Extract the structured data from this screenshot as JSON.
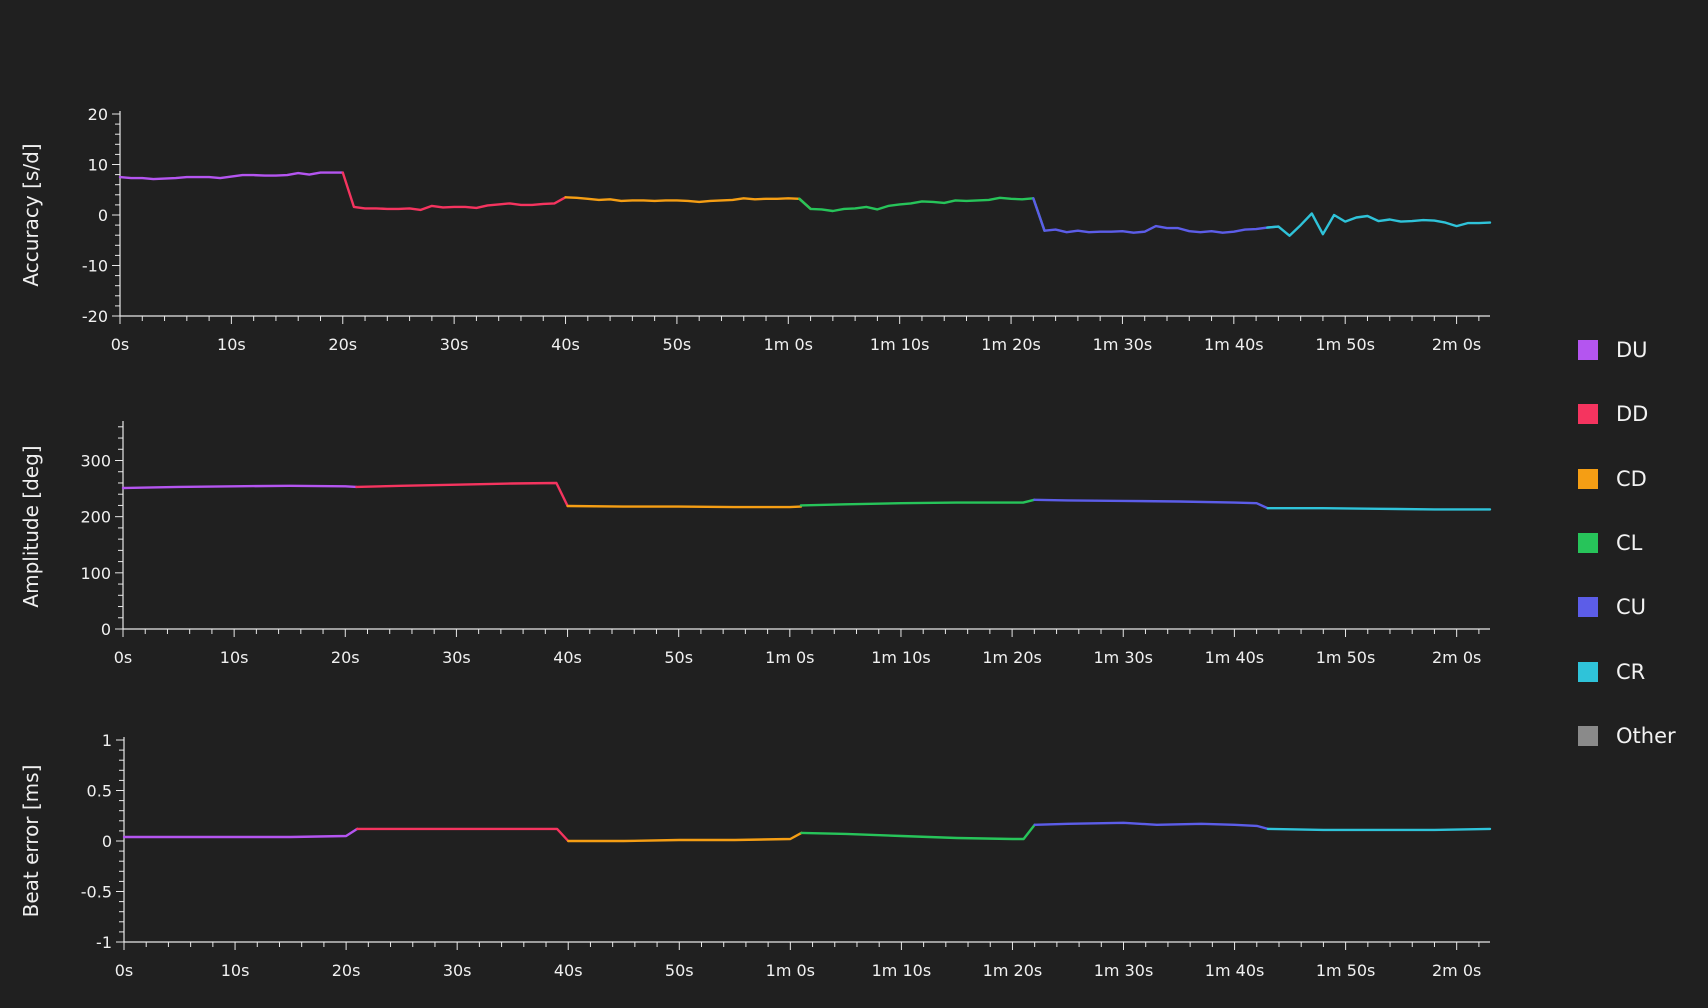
{
  "legend": [
    {
      "label": "DU",
      "color": "#b455f0"
    },
    {
      "label": "DD",
      "color": "#f5345f"
    },
    {
      "label": "CD",
      "color": "#f59e14"
    },
    {
      "label": "CL",
      "color": "#27c45a"
    },
    {
      "label": "CU",
      "color": "#5c5de8"
    },
    {
      "label": "CR",
      "color": "#2fc3d9"
    },
    {
      "label": "Other",
      "color": "#8a8a8a"
    }
  ],
  "chart_data": [
    {
      "type": "line",
      "ylabel": "Accuracy [s/d]",
      "xlabel": "",
      "ylim": [
        -20,
        20
      ],
      "xlim": [
        0,
        123
      ],
      "x_ticks": [
        "0s",
        "10s",
        "20s",
        "30s",
        "40s",
        "50s",
        "1m 0s",
        "1m 10s",
        "1m 20s",
        "1m 30s",
        "1m 40s",
        "1m 50s",
        "2m 0s"
      ],
      "y_ticks": [
        "20",
        "10",
        "0",
        "-10",
        "-20"
      ],
      "series": [
        {
          "name": "DU",
          "color": "#b455f0",
          "points": [
            [
              0,
              7.5
            ],
            [
              1,
              7.3
            ],
            [
              2,
              7.3
            ],
            [
              3,
              7.1
            ],
            [
              4,
              7.2
            ],
            [
              5,
              7.3
            ],
            [
              6,
              7.5
            ],
            [
              7,
              7.5
            ],
            [
              8,
              7.5
            ],
            [
              9,
              7.3
            ],
            [
              10,
              7.6
            ],
            [
              11,
              7.9
            ],
            [
              12,
              7.9
            ],
            [
              13,
              7.8
            ],
            [
              14,
              7.8
            ],
            [
              15,
              7.9
            ],
            [
              16,
              8.3
            ],
            [
              17,
              8.0
            ],
            [
              18,
              8.4
            ],
            [
              19,
              8.4
            ],
            [
              20,
              8.4
            ]
          ]
        },
        {
          "name": "DD",
          "color": "#f5345f",
          "points": [
            [
              20,
              8.4
            ],
            [
              21,
              1.6
            ],
            [
              22,
              1.3
            ],
            [
              23,
              1.3
            ],
            [
              24,
              1.2
            ],
            [
              25,
              1.2
            ],
            [
              26,
              1.3
            ],
            [
              27,
              1.0
            ],
            [
              28,
              1.8
            ],
            [
              29,
              1.5
            ],
            [
              30,
              1.6
            ],
            [
              31,
              1.6
            ],
            [
              32,
              1.4
            ],
            [
              33,
              1.9
            ],
            [
              34,
              2.1
            ],
            [
              35,
              2.3
            ],
            [
              36,
              2.0
            ],
            [
              37,
              2.0
            ],
            [
              38,
              2.2
            ],
            [
              39,
              2.3
            ],
            [
              40,
              3.5
            ]
          ]
        },
        {
          "name": "CD",
          "color": "#f59e14",
          "points": [
            [
              40,
              3.5
            ],
            [
              41,
              3.4
            ],
            [
              42,
              3.2
            ],
            [
              43,
              3.0
            ],
            [
              44,
              3.1
            ],
            [
              45,
              2.8
            ],
            [
              46,
              2.9
            ],
            [
              47,
              2.9
            ],
            [
              48,
              2.8
            ],
            [
              49,
              2.9
            ],
            [
              50,
              2.9
            ],
            [
              51,
              2.8
            ],
            [
              52,
              2.6
            ],
            [
              53,
              2.8
            ],
            [
              54,
              2.9
            ],
            [
              55,
              3.0
            ],
            [
              56,
              3.3
            ],
            [
              57,
              3.1
            ],
            [
              58,
              3.2
            ],
            [
              59,
              3.2
            ],
            [
              60,
              3.3
            ],
            [
              61,
              3.2
            ],
            [
              62,
              1.2
            ]
          ]
        },
        {
          "name": "CL",
          "color": "#27c45a",
          "points": [
            [
              61,
              3.2
            ],
            [
              62,
              1.2
            ],
            [
              63,
              1.1
            ],
            [
              64,
              0.8
            ],
            [
              65,
              1.2
            ],
            [
              66,
              1.3
            ],
            [
              67,
              1.6
            ],
            [
              68,
              1.1
            ],
            [
              69,
              1.8
            ],
            [
              70,
              2.1
            ],
            [
              71,
              2.3
            ],
            [
              72,
              2.7
            ],
            [
              73,
              2.6
            ],
            [
              74,
              2.4
            ],
            [
              75,
              2.9
            ],
            [
              76,
              2.8
            ],
            [
              77,
              2.9
            ],
            [
              78,
              3.0
            ],
            [
              79,
              3.4
            ],
            [
              80,
              3.2
            ],
            [
              81,
              3.1
            ],
            [
              82,
              3.3
            ],
            [
              83,
              -3.1
            ]
          ]
        },
        {
          "name": "CU",
          "color": "#5c5de8",
          "points": [
            [
              82,
              3.3
            ],
            [
              83,
              -3.1
            ],
            [
              84,
              -2.9
            ],
            [
              85,
              -3.4
            ],
            [
              86,
              -3.1
            ],
            [
              87,
              -3.4
            ],
            [
              88,
              -3.3
            ],
            [
              89,
              -3.3
            ],
            [
              90,
              -3.2
            ],
            [
              91,
              -3.5
            ],
            [
              92,
              -3.3
            ],
            [
              93,
              -2.2
            ],
            [
              94,
              -2.6
            ],
            [
              95,
              -2.6
            ],
            [
              96,
              -3.2
            ],
            [
              97,
              -3.4
            ],
            [
              98,
              -3.2
            ],
            [
              99,
              -3.5
            ],
            [
              100,
              -3.3
            ],
            [
              101,
              -2.9
            ],
            [
              102,
              -2.8
            ],
            [
              103,
              -2.5
            ],
            [
              104,
              -2.3
            ]
          ]
        },
        {
          "name": "CR",
          "color": "#2fc3d9",
          "points": [
            [
              103,
              -2.5
            ],
            [
              104,
              -2.3
            ],
            [
              105,
              -4.1
            ],
            [
              106,
              -2.0
            ],
            [
              107,
              0.3
            ],
            [
              108,
              -3.8
            ],
            [
              109,
              0.0
            ],
            [
              110,
              -1.3
            ],
            [
              111,
              -0.5
            ],
            [
              112,
              -0.2
            ],
            [
              113,
              -1.2
            ],
            [
              114,
              -0.9
            ],
            [
              115,
              -1.3
            ],
            [
              116,
              -1.2
            ],
            [
              117,
              -1.0
            ],
            [
              118,
              -1.1
            ],
            [
              119,
              -1.5
            ],
            [
              120,
              -2.2
            ],
            [
              121,
              -1.6
            ],
            [
              122,
              -1.6
            ],
            [
              123,
              -1.5
            ]
          ]
        }
      ]
    },
    {
      "type": "line",
      "ylabel": "Amplitude [deg]",
      "xlabel": "",
      "ylim": [
        0,
        365
      ],
      "xlim": [
        0,
        123
      ],
      "x_ticks": [
        "0s",
        "10s",
        "20s",
        "30s",
        "40s",
        "50s",
        "1m 0s",
        "1m 10s",
        "1m 20s",
        "1m 30s",
        "1m 40s",
        "1m 50s",
        "2m 0s"
      ],
      "y_ticks": [
        "300",
        "200",
        "100",
        "0"
      ],
      "series": [
        {
          "name": "DU",
          "color": "#b455f0",
          "points": [
            [
              0,
              251
            ],
            [
              5,
              253
            ],
            [
              10,
              254
            ],
            [
              15,
              255
            ],
            [
              20,
              254
            ],
            [
              21,
              253
            ]
          ]
        },
        {
          "name": "DD",
          "color": "#f5345f",
          "points": [
            [
              21,
              253
            ],
            [
              25,
              255
            ],
            [
              30,
              257
            ],
            [
              35,
              259
            ],
            [
              39,
              260
            ],
            [
              40,
              219
            ]
          ]
        },
        {
          "name": "CD",
          "color": "#f59e14",
          "points": [
            [
              40,
              219
            ],
            [
              45,
              218
            ],
            [
              50,
              218
            ],
            [
              55,
              217
            ],
            [
              60,
              217
            ],
            [
              61,
              218
            ]
          ]
        },
        {
          "name": "CL",
          "color": "#27c45a",
          "points": [
            [
              61,
              220
            ],
            [
              65,
              222
            ],
            [
              70,
              224
            ],
            [
              75,
              225
            ],
            [
              80,
              225
            ],
            [
              81,
              225
            ],
            [
              82,
              230
            ]
          ]
        },
        {
          "name": "CU",
          "color": "#5c5de8",
          "points": [
            [
              82,
              230
            ],
            [
              85,
              229
            ],
            [
              90,
              228
            ],
            [
              95,
              227
            ],
            [
              100,
              225
            ],
            [
              102,
              224
            ],
            [
              103,
              215
            ]
          ]
        },
        {
          "name": "CR",
          "color": "#2fc3d9",
          "points": [
            [
              103,
              215
            ],
            [
              108,
              215
            ],
            [
              113,
              214
            ],
            [
              118,
              213
            ],
            [
              123,
              213
            ]
          ]
        }
      ]
    },
    {
      "type": "line",
      "ylabel": "Beat error [ms]",
      "xlabel": "",
      "ylim": [
        -1,
        1
      ],
      "xlim": [
        0,
        123
      ],
      "x_ticks": [
        "0s",
        "10s",
        "20s",
        "30s",
        "40s",
        "50s",
        "1m 0s",
        "1m 10s",
        "1m 20s",
        "1m 30s",
        "1m 40s",
        "1m 50s",
        "2m 0s"
      ],
      "y_ticks": [
        "1",
        "0.5",
        "0",
        "-0.5",
        "-1"
      ],
      "series": [
        {
          "name": "DU",
          "color": "#b455f0",
          "points": [
            [
              0,
              0.04
            ],
            [
              5,
              0.04
            ],
            [
              10,
              0.04
            ],
            [
              15,
              0.04
            ],
            [
              20,
              0.05
            ],
            [
              21,
              0.12
            ]
          ]
        },
        {
          "name": "DD",
          "color": "#f5345f",
          "points": [
            [
              21,
              0.12
            ],
            [
              25,
              0.12
            ],
            [
              30,
              0.12
            ],
            [
              35,
              0.12
            ],
            [
              39,
              0.12
            ],
            [
              40,
              0.0
            ]
          ]
        },
        {
          "name": "CD",
          "color": "#f59e14",
          "points": [
            [
              40,
              0.0
            ],
            [
              45,
              0.0
            ],
            [
              50,
              0.01
            ],
            [
              55,
              0.01
            ],
            [
              60,
              0.02
            ],
            [
              61,
              0.08
            ]
          ]
        },
        {
          "name": "CL",
          "color": "#27c45a",
          "points": [
            [
              61,
              0.08
            ],
            [
              65,
              0.07
            ],
            [
              70,
              0.05
            ],
            [
              75,
              0.03
            ],
            [
              80,
              0.02
            ],
            [
              81,
              0.02
            ],
            [
              82,
              0.16
            ]
          ]
        },
        {
          "name": "CU",
          "color": "#5c5de8",
          "points": [
            [
              82,
              0.16
            ],
            [
              85,
              0.17
            ],
            [
              90,
              0.18
            ],
            [
              93,
              0.16
            ],
            [
              97,
              0.17
            ],
            [
              100,
              0.16
            ],
            [
              102,
              0.15
            ],
            [
              103,
              0.12
            ]
          ]
        },
        {
          "name": "CR",
          "color": "#2fc3d9",
          "points": [
            [
              103,
              0.12
            ],
            [
              108,
              0.11
            ],
            [
              113,
              0.11
            ],
            [
              118,
              0.11
            ],
            [
              123,
              0.12
            ]
          ]
        }
      ]
    }
  ]
}
